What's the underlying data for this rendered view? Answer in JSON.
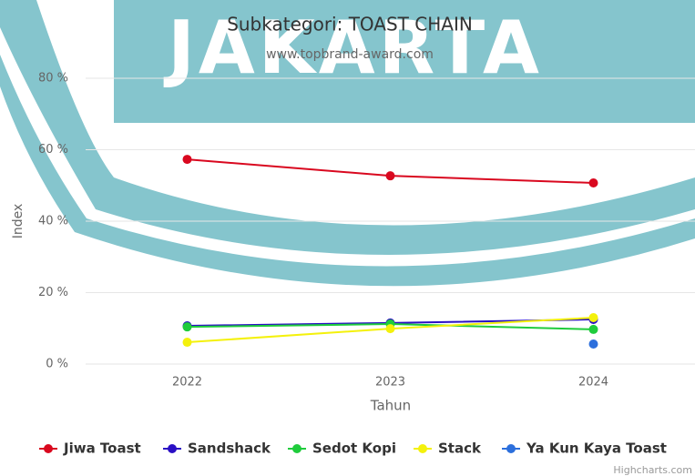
{
  "chart_data": {
    "type": "line",
    "title": "Subkategori: TOAST CHAIN",
    "subtitle": "www.topbrand-award.com",
    "watermark": "JAKARTA",
    "x_label": "Tahun",
    "y_label": "Index",
    "credits": "Highcharts.com",
    "categories": [
      "2022",
      "2023",
      "2024"
    ],
    "ylim": [
      0,
      80
    ],
    "yticks": [
      {
        "value": 0,
        "label": "0 %"
      },
      {
        "value": 20,
        "label": "20 %"
      },
      {
        "value": 40,
        "label": "40 %"
      },
      {
        "value": 60,
        "label": "60 %"
      },
      {
        "value": 80,
        "label": "80 %"
      }
    ],
    "grid": true,
    "legend": "bottom",
    "series": [
      {
        "name": "Jiwa Toast",
        "color": "#d9081f",
        "values": [
          57.3,
          52.7,
          50.7
        ]
      },
      {
        "name": "Sandshack",
        "color": "#2a0fc4",
        "values": [
          10.7,
          11.5,
          12.5
        ]
      },
      {
        "name": "Sedot Kopi",
        "color": "#1fcc3c",
        "values": [
          10.4,
          11.2,
          9.7
        ]
      },
      {
        "name": "Stack",
        "color": "#f4f10c",
        "values": [
          6.1,
          9.9,
          13.0
        ]
      },
      {
        "name": "Ya Kun Kaya Toast",
        "color": "#2c6fdc",
        "values": [
          null,
          null,
          5.6
        ]
      }
    ]
  }
}
